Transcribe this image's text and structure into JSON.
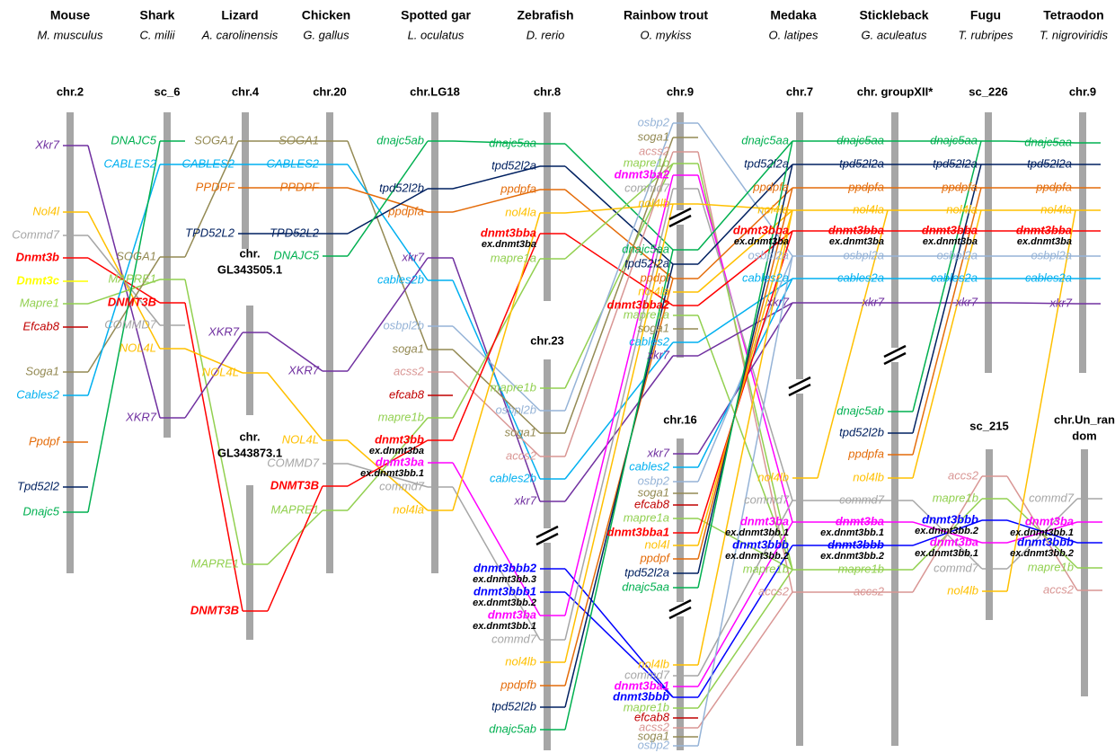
{
  "columns": [
    {
      "species": "Mouse",
      "latin": "M. musculus",
      "chromosomes": [
        {
          "label": [
            "chr.2"
          ],
          "genes": [
            {
              "name": "Xkr7"
            },
            {
              "name": "Nol4l"
            },
            {
              "name": "Commd7"
            },
            {
              "name": "Dnmt3b"
            },
            {
              "name": "Dnmt3c"
            },
            {
              "name": "Mapre1"
            },
            {
              "name": "Efcab8"
            },
            {
              "name": "Soga1"
            },
            {
              "name": "Cables2"
            },
            {
              "name": "Ppdpf"
            },
            {
              "name": "Tpd52l2"
            },
            {
              "name": "Dnajc5"
            }
          ]
        }
      ]
    },
    {
      "species": "Shark",
      "latin": "C. milii",
      "chromosomes": [
        {
          "label": [
            "sc_6"
          ],
          "genes": [
            {
              "name": "DNAJC5"
            },
            {
              "name": "CABLES2"
            },
            {
              "name": "SOGA1"
            },
            {
              "name": "MAPRE1"
            },
            {
              "name": "DNMT3B"
            },
            {
              "name": "COMMD7"
            },
            {
              "name": "NOL4L"
            },
            {
              "name": "XKR7"
            }
          ]
        }
      ]
    },
    {
      "species": "Lizard",
      "latin": "A. carolinensis",
      "chromosomes": [
        {
          "label": [
            "chr.4"
          ],
          "genes": [
            {
              "name": "SOGA1"
            },
            {
              "name": "CABLES2"
            },
            {
              "name": "PPDPF"
            },
            {
              "name": "TPD52L2"
            }
          ]
        },
        {
          "label": [
            "chr.",
            "GL343505.1"
          ],
          "genes": [
            {
              "name": "XKR7"
            },
            {
              "name": "NOL4L"
            }
          ]
        },
        {
          "label": [
            "chr.",
            "GL343873.1"
          ],
          "genes": [
            {
              "name": "MAPRE1"
            },
            {
              "name": "DNMT3B"
            }
          ]
        }
      ]
    },
    {
      "species": "Chicken",
      "latin": "G. gallus",
      "chromosomes": [
        {
          "label": [
            "chr.20"
          ],
          "genes": [
            {
              "name": "SOGA1"
            },
            {
              "name": "CABLES2"
            },
            {
              "name": "PPDPF"
            },
            {
              "name": "TPD52L2"
            },
            {
              "name": "DNAJC5"
            },
            {
              "name": "XKR7"
            },
            {
              "name": "NOL4L"
            },
            {
              "name": "COMMD7"
            },
            {
              "name": "DNMT3B"
            },
            {
              "name": "MAPRE1"
            }
          ]
        }
      ]
    },
    {
      "species": "Spotted gar",
      "latin": "L. oculatus",
      "chromosomes": [
        {
          "label": [
            "chr.LG18"
          ],
          "genes": [
            {
              "name": "dnajc5ab"
            },
            {
              "name": "tpd52l2b"
            },
            {
              "name": "ppdpfa"
            },
            {
              "name": "xkr7"
            },
            {
              "name": "cables2b"
            },
            {
              "name": "osbpl2b"
            },
            {
              "name": "soga1"
            },
            {
              "name": "acss2"
            },
            {
              "name": "efcab8"
            },
            {
              "name": "mapre1b"
            },
            {
              "name": "dnmt3bb",
              "note": "ex.dnmt3ba"
            },
            {
              "name": "dnmt3ba",
              "note": "ex.dnmt3bb.1"
            },
            {
              "name": "commd7"
            },
            {
              "name": "nol4la"
            }
          ]
        }
      ]
    },
    {
      "species": "Zebrafish",
      "latin": "D. rerio",
      "chromosomes": [
        {
          "label": [
            "chr.8"
          ],
          "genes": [
            {
              "name": "dnajc5aa"
            },
            {
              "name": "tpd52l2a"
            },
            {
              "name": "ppdpfa"
            },
            {
              "name": "nol4la"
            },
            {
              "name": "dnmt3bba",
              "note": "ex.dnmt3ba"
            },
            {
              "name": "mapre1a"
            }
          ]
        },
        {
          "label": [
            "chr.23"
          ],
          "genes": [
            {
              "name": "mapre1b"
            },
            {
              "name": "osbpl2b"
            },
            {
              "name": "soga1"
            },
            {
              "name": "accs2"
            },
            {
              "name": "cables2b"
            },
            {
              "name": "xkr7"
            },
            {
              "name": "dnmt3bbb2",
              "note": "ex.dnmt3bb.3"
            },
            {
              "name": "dnmt3bbb1",
              "note": "ex.dnmt3bb.2"
            },
            {
              "name": "dnmt3ba",
              "note": "ex.dnmt3bb.1"
            },
            {
              "name": "commd7"
            },
            {
              "name": "nol4lb"
            },
            {
              "name": "ppdpfb"
            },
            {
              "name": "tpd52l2b"
            },
            {
              "name": "dnajc5ab"
            }
          ]
        }
      ]
    },
    {
      "species": "Rainbow trout",
      "latin": "O. mykiss",
      "chromosomes": [
        {
          "label": [
            "chr.9"
          ],
          "genes": [
            {
              "name": "osbp2"
            },
            {
              "name": "soga1"
            },
            {
              "name": "acss2"
            },
            {
              "name": "mapre1b"
            },
            {
              "name": "dnmt3ba2"
            },
            {
              "name": "commd7"
            },
            {
              "name": "nol4lb"
            },
            {
              "name": "dnajc5aa"
            },
            {
              "name": "tpd52l2a"
            },
            {
              "name": "ppdpf"
            },
            {
              "name": "nol4la"
            },
            {
              "name": "dnmt3bba2"
            },
            {
              "name": "mapre1a"
            },
            {
              "name": "soga1"
            },
            {
              "name": "cables2"
            },
            {
              "name": "xkr7"
            }
          ]
        },
        {
          "label": [
            "chr.16"
          ],
          "genes": [
            {
              "name": "xkr7"
            },
            {
              "name": "cables2"
            },
            {
              "name": "osbp2"
            },
            {
              "name": "soga1"
            },
            {
              "name": "efcab8"
            },
            {
              "name": "mapre1a"
            },
            {
              "name": "dnmt3bba1"
            },
            {
              "name": "nol4l"
            },
            {
              "name": "ppdpf"
            },
            {
              "name": "tpd52l2a"
            },
            {
              "name": "dnajc5aa"
            },
            {
              "name": "nol4lb"
            },
            {
              "name": "commd7"
            },
            {
              "name": "dnmt3ba1"
            },
            {
              "name": "dnmt3bbb"
            },
            {
              "name": "mapre1b"
            },
            {
              "name": "efcab8"
            },
            {
              "name": "acss2"
            },
            {
              "name": "soga1"
            },
            {
              "name": "osbp2"
            }
          ]
        }
      ]
    },
    {
      "species": "Medaka",
      "latin": "O. latipes",
      "chromosomes": [
        {
          "label": [
            "chr.7"
          ],
          "genes": [
            {
              "name": "dnajc5aa"
            },
            {
              "name": "tpd52l2a"
            },
            {
              "name": "ppdpfa"
            },
            {
              "name": "nol4la"
            },
            {
              "name": "dnmt3bba",
              "note": "ex.dnmt3ba"
            },
            {
              "name": "osbpl2a"
            },
            {
              "name": "cables2a"
            },
            {
              "name": "xkr7"
            },
            {
              "name": "nol4lb"
            },
            {
              "name": "commd7"
            },
            {
              "name": "dnmt3ba",
              "note": "ex.dnmt3bb.1"
            },
            {
              "name": "dnmt3bbb",
              "note": "ex.dnmt3bb.2"
            },
            {
              "name": "mapre1b"
            },
            {
              "name": "accs2"
            }
          ]
        }
      ]
    },
    {
      "species": "Stickleback",
      "latin": "G. aculeatus",
      "chromosomes": [
        {
          "label": [
            "chr. groupXII*"
          ],
          "genes": [
            {
              "name": "dnajc5aa"
            },
            {
              "name": "tpd52l2a"
            },
            {
              "name": "ppdpfa"
            },
            {
              "name": "nol4la"
            },
            {
              "name": "dnmt3bba",
              "note": "ex.dnmt3ba"
            },
            {
              "name": "osbpl2a"
            },
            {
              "name": "cables2a"
            },
            {
              "name": "xkr7"
            },
            {
              "name": "dnajc5ab"
            },
            {
              "name": "tpd52l2b"
            },
            {
              "name": "ppdpfa"
            },
            {
              "name": "nol4lb"
            },
            {
              "name": "commd7"
            },
            {
              "name": "dnmt3ba",
              "note": "ex.dnmt3bb.1"
            },
            {
              "name": "dnmt3bbb",
              "note": "ex.dnmt3bb.2"
            },
            {
              "name": "mapre1b"
            },
            {
              "name": "accs2"
            }
          ]
        }
      ]
    },
    {
      "species": "Fugu",
      "latin": "T. rubripes",
      "chromosomes": [
        {
          "label": [
            "sc_226"
          ],
          "genes": [
            {
              "name": "dnajc5aa"
            },
            {
              "name": "tpd52l2a"
            },
            {
              "name": "ppdpfa"
            },
            {
              "name": "nol4la"
            },
            {
              "name": "dnmt3bba",
              "note": "ex.dnmt3ba"
            },
            {
              "name": "osbpl2a"
            },
            {
              "name": "cables2a"
            },
            {
              "name": "xkr7"
            }
          ]
        },
        {
          "label": [
            "sc_215"
          ],
          "genes": [
            {
              "name": "accs2"
            },
            {
              "name": "mapre1b"
            },
            {
              "name": "dnmt3bbb",
              "note": "ex.dnmt3bb.2"
            },
            {
              "name": "dnmt3ba",
              "note": "ex.dnmt3bb.1"
            },
            {
              "name": "commd7"
            },
            {
              "name": "nol4lb"
            }
          ]
        }
      ]
    },
    {
      "species": "Tetraodon",
      "latin": "T. nigroviridis",
      "chromosomes": [
        {
          "label": [
            "chr.9"
          ],
          "genes": [
            {
              "name": "dnajc5aa"
            },
            {
              "name": "tpd52l2a"
            },
            {
              "name": "ppdpfa"
            },
            {
              "name": "nol4la"
            },
            {
              "name": "dnmt3bba",
              "note": "ex.dnmt3ba"
            },
            {
              "name": "osbpl2a"
            },
            {
              "name": "cables2a"
            },
            {
              "name": "xkr7"
            }
          ]
        },
        {
          "label": [
            "chr.Un_ran",
            "dom"
          ],
          "genes": [
            {
              "name": "commd7"
            },
            {
              "name": "dnmt3ba",
              "note": "ex.dnmt3bb.1"
            },
            {
              "name": "dnmt3bbb",
              "note": "ex.dnmt3bb.2"
            },
            {
              "name": "mapre1b"
            },
            {
              "name": "accs2"
            }
          ]
        }
      ]
    }
  ]
}
